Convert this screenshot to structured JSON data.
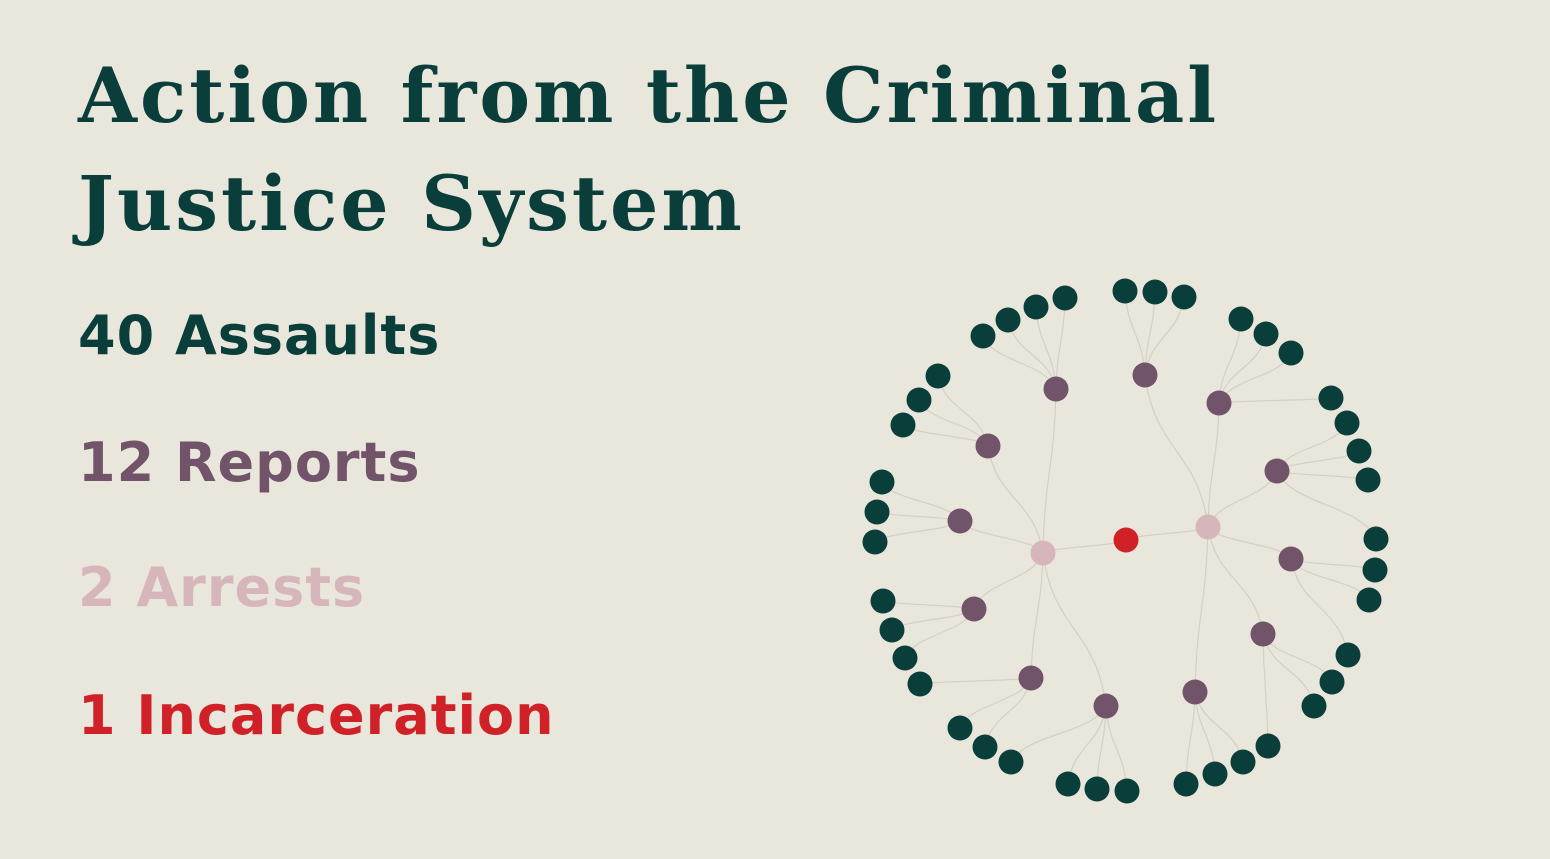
{
  "title": "Action from the Criminal Justice System",
  "stats": [
    {
      "number": "40",
      "label": "Assaults",
      "color": "#0a3e3b"
    },
    {
      "number": "12",
      "label": "Reports",
      "color": "#71536a"
    },
    {
      "number": "2",
      "label": "Arrests",
      "color": "#d7b6bb"
    },
    {
      "number": "1",
      "label": "Incarceration",
      "color": "#d02028"
    }
  ],
  "colors": {
    "background": "#e9e6dc",
    "assault": "#0a3e3b",
    "report": "#71536a",
    "arrest": "#d7b6bb",
    "incarceration": "#d02028",
    "link": "#d6d0c4"
  },
  "network": {
    "root": {
      "count": 1
    },
    "arrests": {
      "count": 2
    },
    "reports": {
      "count": 12,
      "per_arrest": [
        6,
        6
      ]
    },
    "assaults": {
      "count": 40,
      "per_report": [
        4,
        3,
        3,
        3,
        3,
        4,
        3,
        4,
        4,
        3,
        3,
        3
      ]
    }
  }
}
